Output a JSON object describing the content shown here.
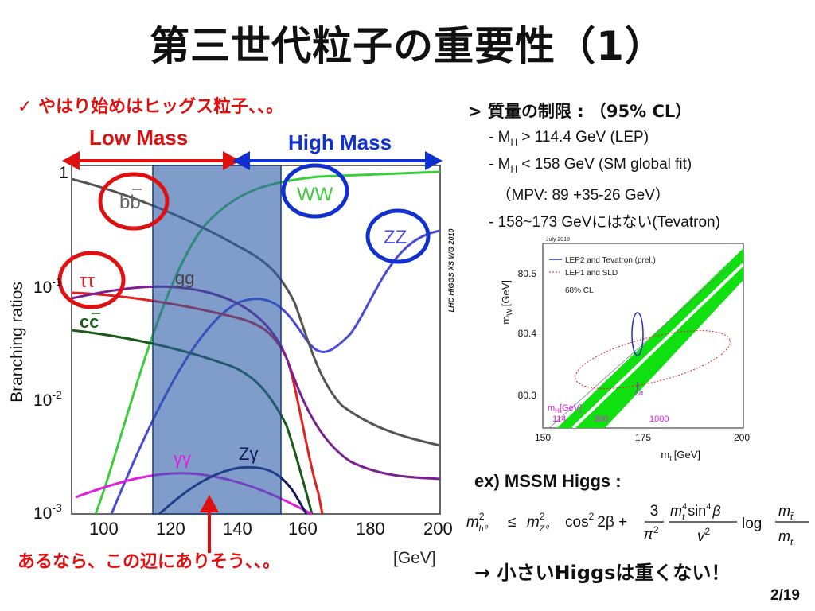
{
  "title": "第三世代粒子の重要性（1）",
  "bullet": "✓ やはり始めはヒッグス粒子、、。",
  "arrows": {
    "low_mass": "Low Mass",
    "high_mass": "High Mass"
  },
  "bottom_note": "あるなら、この辺にありそう、、。",
  "br_plot": {
    "y_title": "Branching ratios",
    "x_tick_labels": [
      "100",
      "120",
      "140",
      "160",
      "180",
      "200"
    ],
    "y_tick_labels": [
      "1",
      "10",
      "10",
      "10"
    ],
    "y_tick_exponents": [
      "",
      "-1",
      "-2",
      "-3"
    ],
    "x_unit_visible": "[GeV]",
    "watermark": "LHC HIGGS XS WG 2010",
    "curve_labels": {
      "bb": "bb",
      "tautau": "ττ",
      "cc": "cc",
      "gg": "gg",
      "WW": "WW",
      "ZZ": "ZZ",
      "gammagamma": "γγ",
      "Zgamma": "Zγ"
    },
    "colors": {
      "bb": "#555555",
      "tautau": "#e02020",
      "cc": "#1a5a1a",
      "gg": "#7a2090",
      "WW": "#3ccc3c",
      "ZZ": "#4a4ad8",
      "gammagamma": "#e020e0",
      "Zgamma": "#101860"
    }
  },
  "constraints": {
    "heading": "> 質量の制限 : （95% CL）",
    "lines": [
      {
        "pre": "- M",
        "sub": "H",
        "post": " > 114.4 GeV (LEP)"
      },
      {
        "pre": "- M",
        "sub": "H",
        "post": " < 158 GeV (SM global fit)"
      },
      {
        "pre": "　（MPV: 89 +35-26 GeV）",
        "sub": "",
        "post": ""
      },
      {
        "pre": "- 158~173 GeVにはない(Tevatron)",
        "sub": "",
        "post": ""
      }
    ]
  },
  "mw_plot": {
    "date": "July 2010",
    "legend": [
      "LEP2 and Tevatron (prel.)",
      "LEP1 and SLD",
      "68% CL"
    ],
    "x_title": "m",
    "x_title_sub": "t",
    "x_unit": "[GeV]",
    "y_title": "m",
    "y_title_sub": "W",
    "y_unit": "[GeV]",
    "x_ticks": [
      "150",
      "175",
      "200"
    ],
    "y_ticks": [
      "80.5",
      "80.4",
      "80.3"
    ],
    "mh_label": "m",
    "mh_label_sub": "H",
    "mh_unit": "[GeV]",
    "mh_values": [
      "114",
      "300",
      "1000"
    ],
    "delta_alpha": "Δα"
  },
  "mssm_label": "ex) MSSM Higgs :",
  "formula": {
    "lhs": "m",
    "lhs_sup": "2",
    "lhs_sub": "h⁰",
    "le": "≤",
    "mz": "m",
    "mz_sup": "2",
    "mz_sub": "Z⁰",
    "cos": "cos",
    "cos_sup": "2",
    "beta": "2β +",
    "frac1_num": "3",
    "frac1_den": "π",
    "frac1_den_sup": "2",
    "frac2_num": "m",
    "frac2_num_sup": "4",
    "frac2_num_sub": "t",
    "sin": "sin",
    "sin_sup": "4",
    "sin_beta": "β",
    "frac2_den": "v",
    "frac2_den_sup": "2",
    "log": "log",
    "frac3_num": "m",
    "frac3_num_sub": "t̃",
    "frac3_den": "m",
    "frac3_den_sub": "t"
  },
  "conclusion": "→ 小さいHiggsは重くない！",
  "page_number": "2/19"
}
